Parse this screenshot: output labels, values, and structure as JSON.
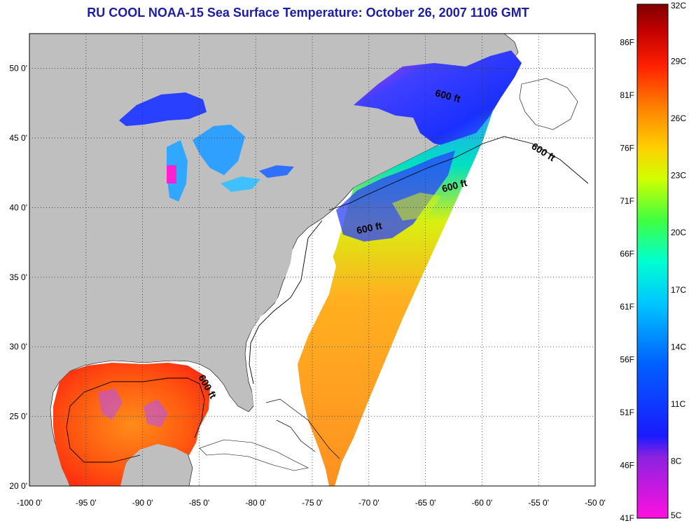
{
  "title": "RU COOL  NOAA-15  Sea Surface Temperature:  October 26, 2007 1106 GMT",
  "colors": {
    "title": "#1c1caa",
    "land": "#bfbfbf",
    "ocean_nodata": "#ffffff",
    "coastline": "#000000"
  },
  "axes": {
    "lon_ticks": [
      "-100 0'",
      "-95 0'",
      "-90 0'",
      "-85 0'",
      "-80 0'",
      "-75 0'",
      "-70 0'",
      "-65 0'",
      "-60 0'",
      "-55 0'",
      "-50 0'"
    ],
    "lat_ticks": [
      "20 0'",
      "25 0'",
      "30 0'",
      "35 0'",
      "40 0'",
      "45 0'",
      "50 0'"
    ],
    "lon_range": [
      -100,
      -50
    ],
    "lat_range": [
      20,
      52.5
    ],
    "grid": "dotted"
  },
  "contour_labels": [
    {
      "text": "600 ft",
      "region": "gulf-of-st-lawrence"
    },
    {
      "text": "600 ft",
      "region": "grand-banks"
    },
    {
      "text": "600 ft",
      "region": "gulf-of-maine"
    },
    {
      "text": "600 ft",
      "region": "mid-atlantic-bight"
    },
    {
      "text": "600 ft",
      "region": "gulf-of-mexico"
    }
  ],
  "colorbar": {
    "fahrenheit": [
      "86F",
      "81F",
      "76F",
      "71F",
      "66F",
      "61F",
      "56F",
      "51F",
      "46F",
      "41F"
    ],
    "celsius": [
      "32C",
      "29C",
      "26C",
      "23C",
      "20C",
      "17C",
      "14C",
      "11C",
      "8C",
      "5C"
    ],
    "range_c": [
      5,
      32
    ],
    "colors": [
      "#ff10e0",
      "#8a22e0",
      "#1a1aff",
      "#0060ff",
      "#00c8ff",
      "#00ffd0",
      "#40ff40",
      "#d0ff00",
      "#ffd000",
      "#ff8000",
      "#ff2000",
      "#c00000",
      "#800000"
    ]
  }
}
